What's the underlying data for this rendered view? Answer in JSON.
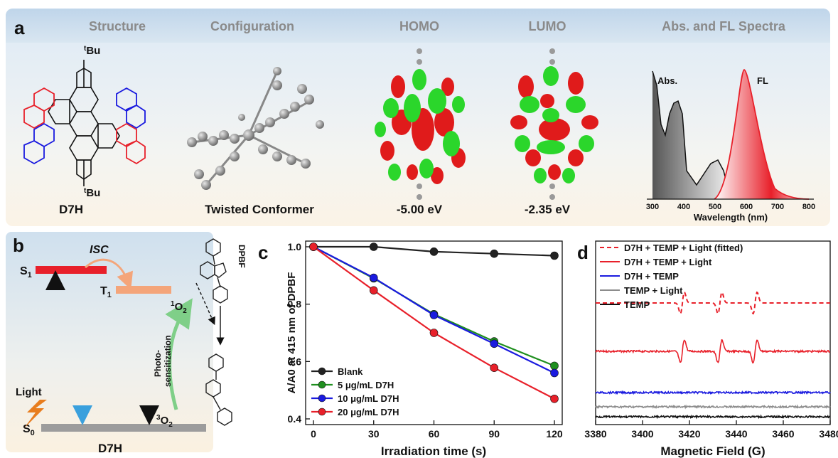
{
  "panel_a": {
    "letter": "a",
    "headers": [
      "Structure",
      "Configuration",
      "HOMO",
      "LUMO",
      "Abs. and FL Spectra"
    ],
    "captions": [
      "D7H",
      "Twisted Conformer",
      "-5.00 eV",
      "-2.35 eV"
    ],
    "tbu_top": "Bu",
    "tbu_bottom": "Bu",
    "tbu_sup": "t",
    "colors": {
      "red_ring": "#e8202a",
      "blue_ring": "#1a1adf",
      "homo_pos": "#e01b1b",
      "homo_neg": "#2bd62b",
      "atom": "#8c8c8c"
    },
    "spectra": {
      "abs_label": "Abs.",
      "fl_label": "FL",
      "xlabel": "Wavelength (nm)",
      "xticks": [
        "300",
        "400",
        "500",
        "600",
        "700",
        "800"
      ]
    }
  },
  "panel_b": {
    "letter": "b",
    "s1": "S",
    "s1_sub": "1",
    "t1": "T",
    "t1_sub": "1",
    "s0": "S",
    "s0_sub": "0",
    "isc": "ISC",
    "light": "Light",
    "photo1": "Photo-",
    "photo2": "sensitization",
    "o2_singlet_sup": "1",
    "o2_triplet_sup": "3",
    "o2": "O",
    "o2_sub": "2",
    "dpbf": "DPBF",
    "d7h": "D7H",
    "colors": {
      "s1_bar": "#e8202a",
      "t1_bar": "#f4a57a",
      "s0_bar": "#9c9c9c"
    }
  },
  "panel_c": {
    "letter": "c",
    "chart_data": {
      "type": "line",
      "x": [
        0,
        30,
        60,
        90,
        120
      ],
      "xlabel": "Irradiation time (s)",
      "ylabel": "A/A0 at 415 nm of DPBF",
      "xlim": [
        0,
        120
      ],
      "ylim": [
        0.4,
        1.0
      ],
      "yticks": [
        "0.4",
        "0.6",
        "0.8",
        "1.0"
      ],
      "xticks": [
        "0",
        "30",
        "60",
        "90",
        "120"
      ],
      "legend_position": "bottom-left",
      "series": [
        {
          "name": "Blank",
          "color": "#222222",
          "values": [
            1.0,
            1.0,
            0.983,
            0.976,
            0.969
          ]
        },
        {
          "name": "5 μg/mL D7H",
          "color": "#1f8f1f",
          "values": [
            1.0,
            0.89,
            0.765,
            0.67,
            0.585
          ]
        },
        {
          "name": "10 μg/mL D7H",
          "color": "#1a1adf",
          "values": [
            1.0,
            0.892,
            0.762,
            0.662,
            0.56
          ]
        },
        {
          "name": "20 μg/mL D7H",
          "color": "#e8202a",
          "values": [
            1.0,
            0.848,
            0.7,
            0.578,
            0.47
          ]
        }
      ]
    }
  },
  "panel_d": {
    "letter": "d",
    "chart_data": {
      "type": "line",
      "xlabel": "Magnetic Field (G)",
      "xlim": [
        3380,
        3480
      ],
      "xticks": [
        "3380",
        "3400",
        "3420",
        "3440",
        "3460",
        "3480"
      ],
      "legend_position": "top-left",
      "series": [
        {
          "name": "D7H + TEMP + Light (fitted)",
          "color": "#e8202a",
          "style": "dashed"
        },
        {
          "name": "D7H + TEMP + Light",
          "color": "#e8202a",
          "style": "solid"
        },
        {
          "name": "D7H + TEMP",
          "color": "#1a1adf",
          "style": "solid"
        },
        {
          "name": "TEMP + Light",
          "color": "#8c8c8c",
          "style": "solid"
        },
        {
          "name": "TEMP",
          "color": "#111111",
          "style": "solid"
        }
      ],
      "peak_fields": [
        3417,
        3433,
        3448
      ]
    }
  }
}
